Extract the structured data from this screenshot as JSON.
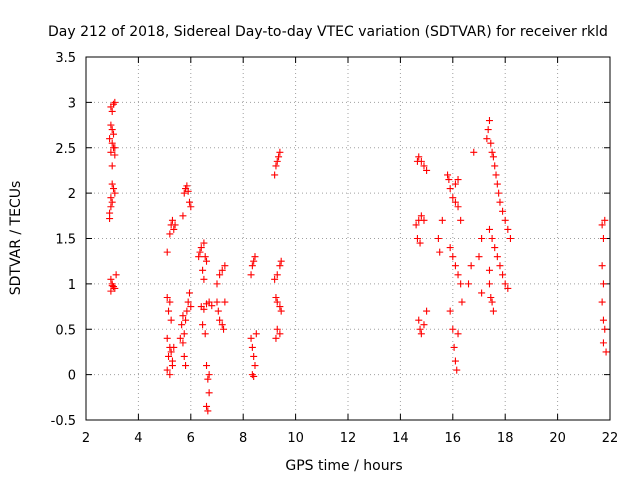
{
  "chart_data": {
    "type": "scatter",
    "title": "Day 212 of 2018, Sidereal Day-to-day VTEC variation (SDTVAR) for receiver rkld",
    "xlabel": "GPS time / hours",
    "ylabel": "SDTVAR / TECUs",
    "xlim": [
      2,
      22
    ],
    "ylim": [
      -0.5,
      3.5
    ],
    "x_ticks": [
      "2",
      "4",
      "6",
      "8",
      "10",
      "12",
      "14",
      "16",
      "18",
      "20",
      "22"
    ],
    "y_ticks": [
      "-0.5",
      "0",
      "0.5",
      "1",
      "1.5",
      "2",
      "2.5",
      "3",
      "3.5"
    ],
    "grid": true,
    "marker": "plus",
    "color": "#ff0000",
    "series": [
      {
        "name": "SDTVAR",
        "points": [
          [
            2.95,
            2.95
          ],
          [
            3.0,
            2.9
          ],
          [
            3.05,
            2.98
          ],
          [
            3.1,
            3.0
          ],
          [
            2.95,
            2.75
          ],
          [
            3.0,
            2.7
          ],
          [
            3.05,
            2.65
          ],
          [
            2.9,
            2.6
          ],
          [
            3.0,
            2.55
          ],
          [
            3.1,
            2.5
          ],
          [
            2.95,
            2.45
          ],
          [
            3.05,
            2.5
          ],
          [
            3.1,
            2.42
          ],
          [
            3.0,
            2.3
          ],
          [
            3.0,
            2.1
          ],
          [
            3.05,
            2.05
          ],
          [
            3.1,
            2.0
          ],
          [
            2.95,
            1.95
          ],
          [
            3.0,
            1.9
          ],
          [
            2.95,
            1.85
          ],
          [
            2.9,
            1.78
          ],
          [
            2.9,
            1.72
          ],
          [
            2.95,
            1.05
          ],
          [
            3.0,
            1.0
          ],
          [
            3.05,
            0.97
          ],
          [
            3.1,
            0.95
          ],
          [
            2.95,
            0.92
          ],
          [
            3.15,
            1.1
          ],
          [
            3.0,
            0.98
          ],
          [
            5.1,
            0.85
          ],
          [
            5.2,
            0.8
          ],
          [
            5.15,
            0.7
          ],
          [
            5.25,
            0.6
          ],
          [
            5.1,
            0.4
          ],
          [
            5.2,
            0.3
          ],
          [
            5.15,
            0.2
          ],
          [
            5.1,
            0.05
          ],
          [
            5.2,
            0.0
          ],
          [
            5.3,
            0.15
          ],
          [
            5.25,
            0.25
          ],
          [
            5.35,
            0.3
          ],
          [
            5.3,
            0.1
          ],
          [
            5.1,
            1.35
          ],
          [
            5.2,
            1.55
          ],
          [
            5.25,
            1.65
          ],
          [
            5.3,
            1.7
          ],
          [
            5.35,
            1.6
          ],
          [
            5.4,
            1.65
          ],
          [
            5.6,
            0.4
          ],
          [
            5.7,
            0.35
          ],
          [
            5.75,
            0.2
          ],
          [
            5.8,
            0.1
          ],
          [
            5.65,
            0.55
          ],
          [
            5.7,
            0.65
          ],
          [
            5.8,
            0.6
          ],
          [
            5.85,
            0.7
          ],
          [
            5.9,
            0.8
          ],
          [
            5.95,
            0.9
          ],
          [
            6.0,
            0.75
          ],
          [
            5.75,
            0.45
          ],
          [
            5.7,
            1.75
          ],
          [
            5.75,
            2.0
          ],
          [
            5.8,
            2.05
          ],
          [
            5.85,
            2.08
          ],
          [
            5.9,
            2.02
          ],
          [
            5.95,
            1.9
          ],
          [
            6.0,
            1.85
          ],
          [
            6.3,
            1.3
          ],
          [
            6.35,
            1.35
          ],
          [
            6.4,
            1.4
          ],
          [
            6.5,
            1.45
          ],
          [
            6.55,
            1.3
          ],
          [
            6.6,
            1.25
          ],
          [
            6.45,
            1.15
          ],
          [
            6.5,
            1.05
          ],
          [
            6.4,
            0.75
          ],
          [
            6.5,
            0.72
          ],
          [
            6.6,
            0.78
          ],
          [
            6.7,
            0.8
          ],
          [
            6.8,
            0.76
          ],
          [
            6.45,
            0.55
          ],
          [
            6.55,
            0.45
          ],
          [
            6.6,
            0.1
          ],
          [
            6.65,
            -0.05
          ],
          [
            6.7,
            -0.2
          ],
          [
            6.6,
            -0.35
          ],
          [
            6.65,
            -0.4
          ],
          [
            6.7,
            0.0
          ],
          [
            7.0,
            0.8
          ],
          [
            7.05,
            0.7
          ],
          [
            7.1,
            0.6
          ],
          [
            7.2,
            0.55
          ],
          [
            7.25,
            0.5
          ],
          [
            7.3,
            0.8
          ],
          [
            7.0,
            1.0
          ],
          [
            7.1,
            1.1
          ],
          [
            7.2,
            1.15
          ],
          [
            7.3,
            1.2
          ],
          [
            8.3,
            1.1
          ],
          [
            8.35,
            1.2
          ],
          [
            8.4,
            1.25
          ],
          [
            8.45,
            1.3
          ],
          [
            8.3,
            0.4
          ],
          [
            8.35,
            0.3
          ],
          [
            8.4,
            0.2
          ],
          [
            8.45,
            0.1
          ],
          [
            8.35,
            0.0
          ],
          [
            8.4,
            -0.02
          ],
          [
            8.5,
            0.45
          ],
          [
            9.2,
            2.2
          ],
          [
            9.25,
            2.3
          ],
          [
            9.3,
            2.35
          ],
          [
            9.35,
            2.4
          ],
          [
            9.4,
            2.45
          ],
          [
            9.2,
            1.05
          ],
          [
            9.3,
            1.1
          ],
          [
            9.4,
            1.2
          ],
          [
            9.45,
            1.25
          ],
          [
            9.25,
            0.85
          ],
          [
            9.3,
            0.8
          ],
          [
            9.4,
            0.75
          ],
          [
            9.45,
            0.7
          ],
          [
            9.3,
            0.5
          ],
          [
            9.4,
            0.45
          ],
          [
            9.25,
            0.4
          ],
          [
            14.65,
            2.35
          ],
          [
            14.7,
            2.4
          ],
          [
            14.8,
            2.35
          ],
          [
            14.9,
            2.3
          ],
          [
            15.0,
            2.25
          ],
          [
            14.6,
            1.65
          ],
          [
            14.7,
            1.7
          ],
          [
            14.8,
            1.75
          ],
          [
            14.9,
            1.7
          ],
          [
            14.65,
            1.5
          ],
          [
            14.75,
            1.45
          ],
          [
            14.7,
            0.6
          ],
          [
            14.75,
            0.5
          ],
          [
            14.8,
            0.45
          ],
          [
            14.9,
            0.55
          ],
          [
            15.0,
            0.7
          ],
          [
            15.5,
            1.35
          ],
          [
            15.45,
            1.5
          ],
          [
            15.6,
            1.7
          ],
          [
            15.8,
            2.2
          ],
          [
            15.85,
            2.15
          ],
          [
            15.9,
            2.05
          ],
          [
            16.0,
            1.95
          ],
          [
            16.1,
            1.9
          ],
          [
            16.2,
            1.85
          ],
          [
            16.3,
            1.7
          ],
          [
            16.1,
            2.1
          ],
          [
            16.2,
            2.15
          ],
          [
            15.9,
            1.4
          ],
          [
            16.0,
            1.3
          ],
          [
            16.1,
            1.2
          ],
          [
            16.2,
            1.1
          ],
          [
            16.3,
            1.0
          ],
          [
            16.35,
            0.8
          ],
          [
            15.9,
            0.7
          ],
          [
            16.0,
            0.5
          ],
          [
            16.05,
            0.3
          ],
          [
            16.1,
            0.15
          ],
          [
            16.15,
            0.05
          ],
          [
            16.2,
            0.45
          ],
          [
            16.6,
            1.0
          ],
          [
            16.7,
            1.2
          ],
          [
            16.8,
            2.45
          ],
          [
            17.0,
            1.3
          ],
          [
            17.1,
            1.5
          ],
          [
            17.1,
            0.9
          ],
          [
            17.3,
            2.6
          ],
          [
            17.35,
            2.7
          ],
          [
            17.4,
            2.8
          ],
          [
            17.45,
            2.55
          ],
          [
            17.5,
            2.45
          ],
          [
            17.55,
            2.4
          ],
          [
            17.6,
            2.3
          ],
          [
            17.65,
            2.2
          ],
          [
            17.7,
            2.1
          ],
          [
            17.75,
            2.0
          ],
          [
            17.8,
            1.9
          ],
          [
            17.9,
            1.8
          ],
          [
            18.0,
            1.7
          ],
          [
            18.1,
            1.6
          ],
          [
            18.2,
            1.5
          ],
          [
            17.4,
            1.6
          ],
          [
            17.5,
            1.5
          ],
          [
            17.6,
            1.4
          ],
          [
            17.7,
            1.3
          ],
          [
            17.8,
            1.2
          ],
          [
            17.9,
            1.1
          ],
          [
            18.0,
            1.0
          ],
          [
            18.1,
            0.95
          ],
          [
            17.4,
            1.0
          ],
          [
            17.45,
            0.85
          ],
          [
            17.5,
            0.8
          ],
          [
            17.55,
            0.7
          ],
          [
            17.4,
            1.15
          ],
          [
            21.7,
            1.65
          ],
          [
            21.8,
            1.7
          ],
          [
            21.75,
            1.5
          ],
          [
            21.7,
            1.2
          ],
          [
            21.75,
            1.0
          ],
          [
            21.7,
            0.8
          ],
          [
            21.75,
            0.6
          ],
          [
            21.8,
            0.5
          ],
          [
            21.75,
            0.35
          ],
          [
            21.85,
            0.25
          ]
        ]
      }
    ]
  }
}
